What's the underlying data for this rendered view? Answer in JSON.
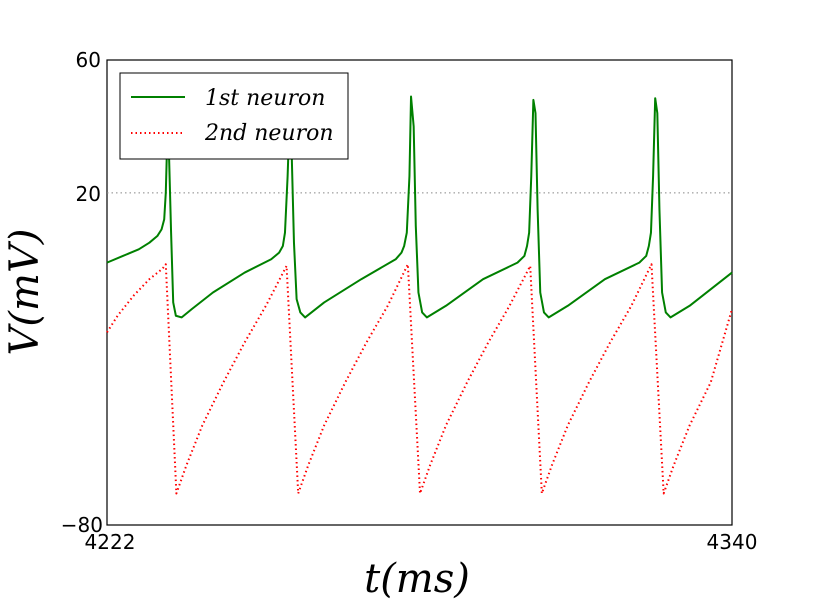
{
  "chart_data": {
    "type": "line",
    "xlabel": "t(ms)",
    "ylabel": "V(mV)",
    "xlim": [
      4222,
      4340
    ],
    "ylim": [
      -80,
      60
    ],
    "xticks": [
      "4222",
      "4340"
    ],
    "yticks": [
      "60",
      "20",
      "−80"
    ],
    "reference_line": {
      "y": 20,
      "style": "dotted",
      "color": "#888888"
    },
    "legend": {
      "position": "top-left"
    },
    "series": [
      {
        "name": "1st neuron",
        "color": "#008000",
        "style": "solid",
        "points": [
          [
            4222,
            -1
          ],
          [
            4225,
            1
          ],
          [
            4228,
            3
          ],
          [
            4230,
            5
          ],
          [
            4231.5,
            7
          ],
          [
            4232.3,
            9
          ],
          [
            4232.8,
            12
          ],
          [
            4233.1,
            20
          ],
          [
            4233.4,
            38
          ],
          [
            4233.7,
            32
          ],
          [
            4234.1,
            8
          ],
          [
            4234.5,
            -13
          ],
          [
            4235,
            -17
          ],
          [
            4236.1,
            -17.5
          ],
          [
            4238,
            -15
          ],
          [
            4242,
            -10
          ],
          [
            4248,
            -4
          ],
          [
            4253,
            0
          ],
          [
            4254.5,
            2
          ],
          [
            4255.2,
            4
          ],
          [
            4255.6,
            8
          ],
          [
            4256.1,
            25
          ],
          [
            4256.5,
            44
          ],
          [
            4256.9,
            30
          ],
          [
            4257.3,
            5
          ],
          [
            4257.8,
            -12
          ],
          [
            4258.5,
            -16
          ],
          [
            4259.4,
            -17.5
          ],
          [
            4263,
            -13
          ],
          [
            4270,
            -6
          ],
          [
            4276.5,
            0
          ],
          [
            4277.6,
            2
          ],
          [
            4278.1,
            4
          ],
          [
            4278.6,
            8
          ],
          [
            4279.1,
            25
          ],
          [
            4279.4,
            49
          ],
          [
            4279.9,
            40
          ],
          [
            4280.3,
            10
          ],
          [
            4280.8,
            -10
          ],
          [
            4281.5,
            -16
          ],
          [
            4282.4,
            -17.5
          ],
          [
            4286,
            -14
          ],
          [
            4293,
            -6
          ],
          [
            4299.5,
            -1
          ],
          [
            4300.8,
            1
          ],
          [
            4301.3,
            4
          ],
          [
            4301.7,
            8
          ],
          [
            4302.1,
            25
          ],
          [
            4302.5,
            48
          ],
          [
            4302.9,
            44
          ],
          [
            4303.3,
            15
          ],
          [
            4303.8,
            -10
          ],
          [
            4304.5,
            -16
          ],
          [
            4305.4,
            -17.5
          ],
          [
            4309,
            -14
          ],
          [
            4316,
            -6
          ],
          [
            4322.5,
            -1
          ],
          [
            4323.8,
            1
          ],
          [
            4324.3,
            4
          ],
          [
            4324.7,
            8
          ],
          [
            4325.1,
            25
          ],
          [
            4325.5,
            48.5
          ],
          [
            4325.9,
            44
          ],
          [
            4326.3,
            15
          ],
          [
            4326.8,
            -10
          ],
          [
            4327.5,
            -16
          ],
          [
            4328.4,
            -17.5
          ],
          [
            4332,
            -14
          ],
          [
            4336,
            -9
          ],
          [
            4340,
            -4
          ]
        ]
      },
      {
        "name": "2nd neuron",
        "color": "#ff0000",
        "style": "dotted",
        "points": [
          [
            4222,
            -22
          ],
          [
            4224,
            -17
          ],
          [
            4227,
            -11
          ],
          [
            4230,
            -6
          ],
          [
            4232.5,
            -2.8
          ],
          [
            4233.1,
            -1.5
          ],
          [
            4235.1,
            -70.5
          ],
          [
            4237,
            -62
          ],
          [
            4240,
            -50
          ],
          [
            4244,
            -37
          ],
          [
            4248,
            -25
          ],
          [
            4252,
            -14
          ],
          [
            4255.9,
            -2
          ],
          [
            4258.1,
            -70.5
          ],
          [
            4260,
            -62
          ],
          [
            4263,
            -50
          ],
          [
            4267,
            -37
          ],
          [
            4271,
            -25
          ],
          [
            4275,
            -14
          ],
          [
            4278.8,
            -1.5
          ],
          [
            4281.1,
            -70.5
          ],
          [
            4283,
            -62
          ],
          [
            4286,
            -50
          ],
          [
            4290,
            -37
          ],
          [
            4294,
            -25
          ],
          [
            4298,
            -14
          ],
          [
            4301.9,
            -2
          ],
          [
            4304.1,
            -70.5
          ],
          [
            4306,
            -62
          ],
          [
            4309,
            -50
          ],
          [
            4313,
            -37
          ],
          [
            4317,
            -25
          ],
          [
            4321,
            -14
          ],
          [
            4324.8,
            -1.5
          ],
          [
            4327.1,
            -70.5
          ],
          [
            4329,
            -62
          ],
          [
            4332,
            -50
          ],
          [
            4336,
            -37
          ],
          [
            4340,
            -15
          ]
        ]
      }
    ]
  }
}
